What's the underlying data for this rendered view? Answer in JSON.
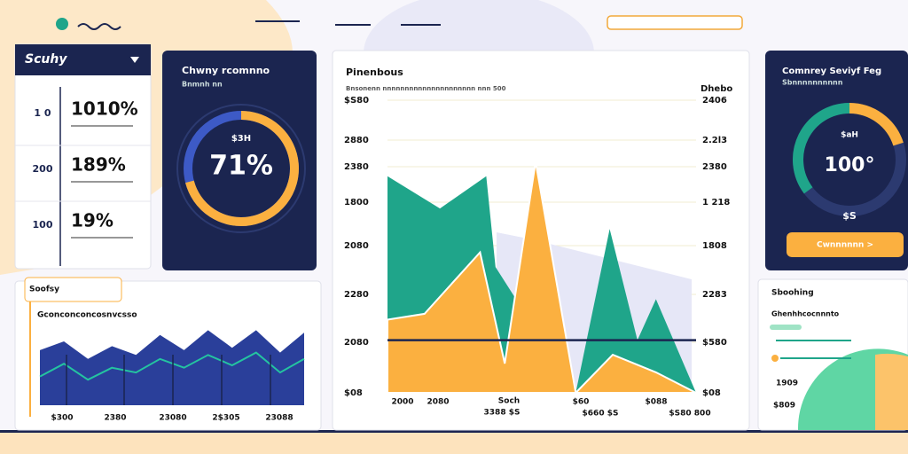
{
  "summary": {
    "title": "Scuhy",
    "rows": [
      {
        "label": "1 0",
        "value": "1010%"
      },
      {
        "label": "200",
        "value": "189%"
      },
      {
        "label": "100",
        "value": "19%"
      }
    ]
  },
  "donut_card": {
    "title": "Chwny rcomnno",
    "subtitle": "Bnmnh nn",
    "center_top": "$3H",
    "value": 71,
    "value_label": "71%"
  },
  "main_chart": {
    "title": "Pinenbous",
    "subtitle": "Bnsonenn nnnnnnnnnnnnnnnnnnnnn nnn 500",
    "left_ticks": [
      "$S80",
      "2880",
      "2380",
      "1800",
      "2080",
      "2280",
      "2080",
      "$08"
    ],
    "right_title": "Dhebo",
    "right_ticks": [
      "2406",
      "2.2l3",
      "2380",
      "1 218",
      "1808",
      "2283",
      "$580",
      "$08"
    ],
    "x_labels": [
      "2000",
      "2080",
      "Soch",
      "3388 $S",
      "$60",
      "$088",
      "$660 $S",
      "$S80 800"
    ],
    "xlim": [
      0,
      100
    ],
    "ylim": [
      0,
      100
    ],
    "reference": 18,
    "series": [
      {
        "color": "#1fa58a",
        "x": [
          0,
          17,
          32,
          35,
          61,
          72,
          81,
          87,
          100
        ],
        "values": [
          74,
          63,
          74,
          43,
          0,
          56,
          18,
          32,
          0
        ]
      },
      {
        "color": "#fbb040",
        "x": [
          0,
          12,
          30,
          38,
          48,
          61,
          73,
          87,
          100
        ],
        "values": [
          25,
          27,
          48,
          10,
          79,
          0,
          13,
          7,
          0
        ]
      }
    ]
  },
  "gauge_card": {
    "title": "Comnrey Seviyf Feg",
    "subtitle": "Sbnnnnnnnnnn",
    "gauge_top": "$aH",
    "value_label": "100°",
    "bottom": "$S",
    "button": "Cwnnnnnn >"
  },
  "trend_card": {
    "tab": "Soofsy",
    "title": "Gconconconcosnvcsso",
    "ylim": [
      0,
      100
    ],
    "area": [
      69,
      80,
      58,
      74,
      63,
      88,
      69,
      94,
      72,
      94,
      66,
      91
    ],
    "line": [
      36,
      52,
      32,
      47,
      41,
      58,
      47,
      63,
      50,
      66,
      41,
      58
    ],
    "x_labels": [
      "$300",
      "2380",
      "23080",
      "2$305",
      "23088"
    ]
  },
  "side_card": {
    "title": "Sboohing",
    "subtitle": "Ghenhhcocnnnto",
    "labels": [
      "1909",
      "$809"
    ]
  }
}
